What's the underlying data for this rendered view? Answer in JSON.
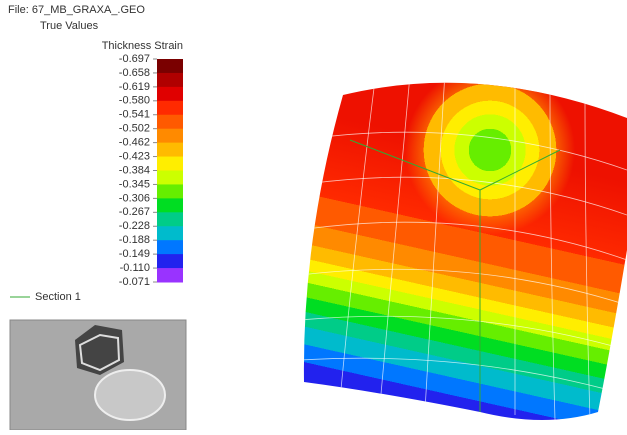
{
  "header": {
    "file": "File: 67_MB_GRAXA_.GEO",
    "mode": "True Values"
  },
  "legend": {
    "title": "Thickness Strain",
    "labels": [
      "-0.697",
      "-0.658",
      "-0.619",
      "-0.580",
      "-0.541",
      "-0.502",
      "-0.462",
      "-0.423",
      "-0.384",
      "-0.345",
      "-0.306",
      "-0.267",
      "-0.228",
      "-0.188",
      "-0.149",
      "-0.110",
      "-0.071"
    ],
    "colors": [
      "#7a0000",
      "#b00000",
      "#e00000",
      "#ff2a00",
      "#ff5a00",
      "#ff8a00",
      "#ffbb00",
      "#ffee00",
      "#ccff00",
      "#66ee00",
      "#00dd22",
      "#00cc88",
      "#00bbcc",
      "#0077ff",
      "#2222ee",
      "#9933ff"
    ]
  },
  "section": {
    "label": "Section 1"
  }
}
